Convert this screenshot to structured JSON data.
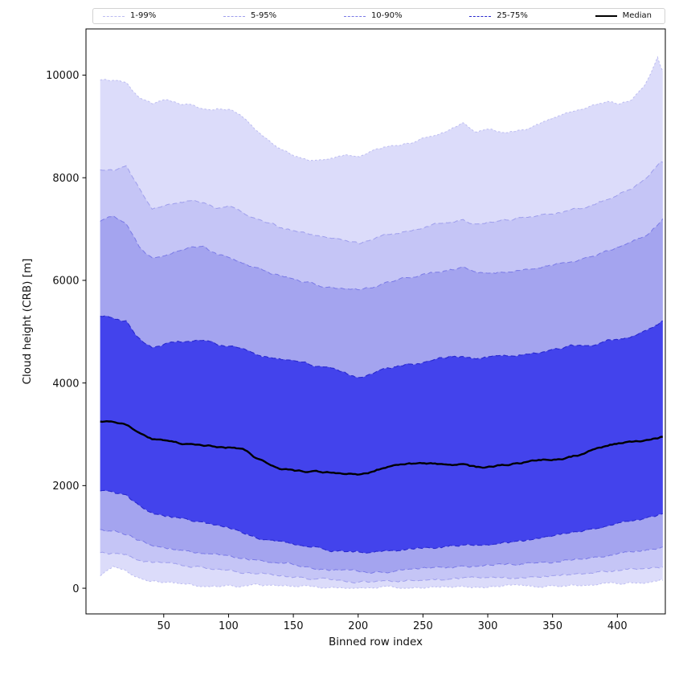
{
  "chart_data": {
    "type": "area",
    "title": "",
    "xlabel": "Binned row index",
    "ylabel": "Cloud height (CRB) [m]",
    "legend_position": "top",
    "grid": false,
    "xlim": [
      -10,
      437
    ],
    "ylim": [
      -500,
      10900
    ],
    "xticks": [
      50,
      100,
      150,
      200,
      250,
      300,
      350,
      400
    ],
    "yticks": [
      0,
      2000,
      4000,
      6000,
      8000,
      10000
    ],
    "x": [
      1,
      11,
      21,
      31,
      41,
      51,
      61,
      71,
      81,
      91,
      101,
      111,
      121,
      131,
      141,
      151,
      161,
      171,
      181,
      191,
      201,
      211,
      221,
      231,
      241,
      251,
      261,
      271,
      281,
      291,
      301,
      311,
      321,
      331,
      341,
      351,
      361,
      371,
      381,
      391,
      401,
      411,
      421,
      431,
      435
    ],
    "percentiles": {
      "p1": [
        250,
        420,
        330,
        210,
        150,
        122,
        102,
        92,
        82,
        72,
        62,
        52,
        42,
        32,
        26,
        20,
        16,
        15,
        12,
        10,
        10,
        10,
        12,
        15,
        16,
        20,
        21,
        25,
        26,
        26,
        30,
        31,
        36,
        41,
        46,
        52,
        62,
        72,
        82,
        92,
        102,
        112,
        122,
        135,
        152
      ],
      "p5": [
        700,
        685,
        650,
        560,
        500,
        462,
        432,
        402,
        382,
        362,
        342,
        322,
        292,
        262,
        240,
        212,
        192,
        172,
        160,
        142,
        132,
        132,
        142,
        152,
        162,
        172,
        182,
        192,
        202,
        192,
        202,
        212,
        222,
        232,
        252,
        262,
        282,
        302,
        322,
        342,
        362,
        382,
        392,
        405,
        415
      ],
      "p10": [
        1150,
        1120,
        1060,
        950,
        855,
        800,
        755,
        705,
        680,
        650,
        620,
        600,
        560,
        520,
        490,
        460,
        430,
        405,
        380,
        355,
        330,
        325,
        335,
        350,
        370,
        390,
        405,
        420,
        430,
        420,
        432,
        452,
        472,
        492,
        512,
        532,
        562,
        592,
        622,
        652,
        692,
        722,
        752,
        785,
        805
      ],
      "p25": [
        1900,
        1870,
        1790,
        1600,
        1450,
        1400,
        1350,
        1300,
        1250,
        1200,
        1150,
        1090,
        1000,
        950,
        900,
        850,
        810,
        780,
        750,
        720,
        700,
        705,
        725,
        750,
        780,
        800,
        820,
        850,
        870,
        855,
        870,
        900,
        930,
        955,
        1000,
        1025,
        1055,
        1100,
        1150,
        1200,
        1255,
        1305,
        1355,
        1410,
        1455
      ],
      "median": [
        3250,
        3260,
        3200,
        3040,
        2900,
        2860,
        2810,
        2800,
        2790,
        2760,
        2750,
        2700,
        2540,
        2440,
        2350,
        2300,
        2280,
        2260,
        2250,
        2230,
        2200,
        2260,
        2350,
        2400,
        2410,
        2420,
        2400,
        2380,
        2400,
        2350,
        2360,
        2400,
        2430,
        2460,
        2500,
        2530,
        2560,
        2610,
        2700,
        2760,
        2820,
        2850,
        2870,
        2910,
        2950
      ],
      "p75": [
        5300,
        5270,
        5200,
        4880,
        4700,
        4760,
        4800,
        4810,
        4850,
        4760,
        4700,
        4640,
        4550,
        4500,
        4450,
        4400,
        4350,
        4300,
        4240,
        4160,
        4100,
        4160,
        4250,
        4310,
        4360,
        4400,
        4450,
        4500,
        4510,
        4450,
        4490,
        4510,
        4550,
        4590,
        4610,
        4650,
        4690,
        4710,
        4760,
        4800,
        4850,
        4910,
        5000,
        5130,
        5210
      ],
      "p90": [
        7150,
        7220,
        7080,
        6650,
        6420,
        6470,
        6560,
        6620,
        6650,
        6500,
        6450,
        6340,
        6240,
        6140,
        6060,
        6000,
        5950,
        5900,
        5850,
        5820,
        5800,
        5850,
        5950,
        6010,
        6060,
        6110,
        6160,
        6220,
        6260,
        6140,
        6110,
        6160,
        6210,
        6260,
        6300,
        6320,
        6360,
        6420,
        6500,
        6560,
        6660,
        6760,
        6880,
        7100,
        7200
      ],
      "p95": [
        8150,
        8120,
        8180,
        7750,
        7400,
        7480,
        7520,
        7560,
        7500,
        7420,
        7450,
        7300,
        7180,
        7080,
        7000,
        6950,
        6900,
        6860,
        6800,
        6760,
        6700,
        6760,
        6860,
        6900,
        6950,
        7000,
        7060,
        7120,
        7180,
        7090,
        7140,
        7180,
        7210,
        7250,
        7290,
        7310,
        7350,
        7400,
        7460,
        7560,
        7680,
        7800,
        7950,
        8200,
        8300
      ],
      "p99": [
        9900,
        9870,
        9820,
        9550,
        9400,
        9480,
        9420,
        9380,
        9300,
        9340,
        9320,
        9150,
        8900,
        8700,
        8550,
        8400,
        8350,
        8340,
        8380,
        8450,
        8400,
        8500,
        8600,
        8650,
        8700,
        8800,
        8850,
        8950,
        9050,
        8870,
        8920,
        8870,
        8900,
        8950,
        9050,
        9150,
        9250,
        9300,
        9400,
        9480,
        9450,
        9550,
        9800,
        10350,
        10080
      ]
    },
    "bands": [
      {
        "label": "1-99%",
        "low": "p1",
        "high": "p99",
        "fill": "#dcdcfa",
        "edge": "#bcbcf1",
        "dash": "2.5 2.5",
        "lw": 1
      },
      {
        "label": "5-95%",
        "low": "p5",
        "high": "p95",
        "fill": "#c5c5f6",
        "edge": "#9e9eec",
        "dash": "6 3.5",
        "lw": 1
      },
      {
        "label": "10-90%",
        "low": "p10",
        "high": "p90",
        "fill": "#a4a4ef",
        "edge": "#7a7ae6",
        "dash": "6 3.5",
        "lw": 1
      },
      {
        "label": "25-75%",
        "low": "p25",
        "high": "p75",
        "fill": "#4343ec",
        "edge": "#2828cf",
        "dash": "6 3.5",
        "lw": 1.1
      }
    ],
    "median_style": {
      "label": "Median",
      "color": "#000000",
      "lw": 2.4
    },
    "legend": [
      "1-99%",
      "5-95%",
      "10-90%",
      "25-75%",
      "Median"
    ],
    "axis_color": "#000000",
    "tick_label_color": "#111111",
    "jitter": {
      "amplitude_m": 60,
      "median_amplitude_m": 45,
      "step_units": 1.6
    }
  }
}
